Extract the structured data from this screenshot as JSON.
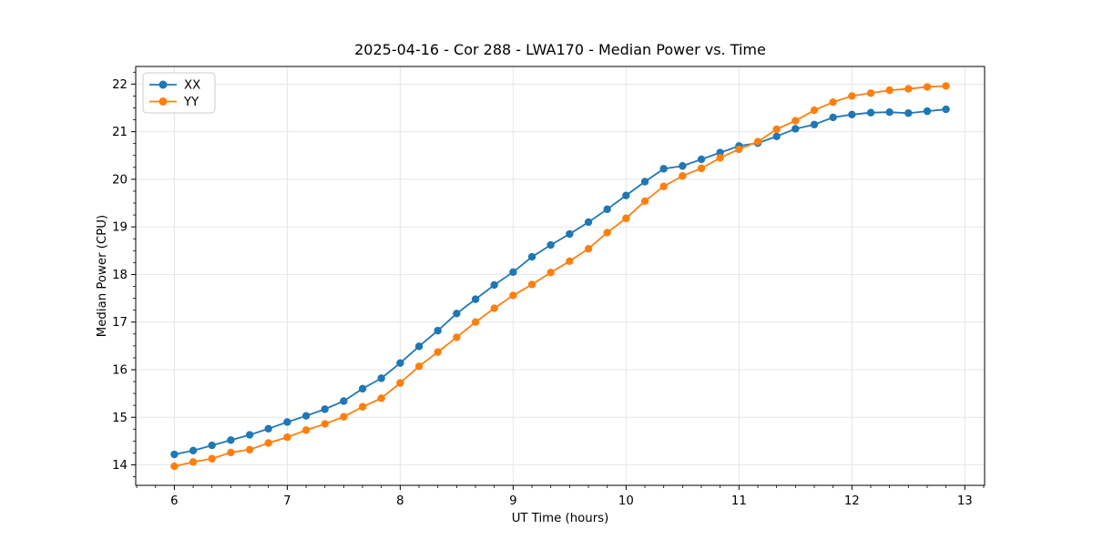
{
  "chart_data": {
    "type": "line",
    "title": "2025-04-16 - Cor 288 - LWA170 - Median Power vs. Time",
    "xlabel": "UT Time (hours)",
    "ylabel": "Median Power (CPU)",
    "xlim": [
      5.658,
      13.175
    ],
    "ylim": [
      13.57,
      22.37
    ],
    "xticks": [
      6,
      7,
      8,
      9,
      10,
      11,
      12,
      13
    ],
    "yticks": [
      14,
      15,
      16,
      17,
      18,
      19,
      20,
      21,
      22
    ],
    "x_minor_step": 0.1666667,
    "y_minor_step": 0.25,
    "grid": true,
    "legend_position": "upper-left",
    "x": [
      6.0,
      6.167,
      6.333,
      6.5,
      6.667,
      6.833,
      7.0,
      7.167,
      7.333,
      7.5,
      7.667,
      7.833,
      8.0,
      8.167,
      8.333,
      8.5,
      8.667,
      8.833,
      9.0,
      9.167,
      9.333,
      9.5,
      9.667,
      9.833,
      10.0,
      10.167,
      10.333,
      10.5,
      10.667,
      10.833,
      11.0,
      11.167,
      11.333,
      11.5,
      11.667,
      11.833,
      12.0,
      12.167,
      12.333,
      12.5,
      12.667,
      12.833
    ],
    "series": [
      {
        "name": "XX",
        "color": "#1f77b4",
        "values": [
          14.22,
          14.3,
          14.41,
          14.52,
          14.63,
          14.76,
          14.9,
          15.03,
          15.17,
          15.34,
          15.6,
          15.82,
          16.14,
          16.49,
          16.82,
          17.18,
          17.48,
          17.78,
          18.05,
          18.37,
          18.62,
          18.85,
          19.1,
          19.37,
          19.66,
          19.95,
          20.22,
          20.28,
          20.42,
          20.56,
          20.7,
          20.76,
          20.9,
          21.06,
          21.15,
          21.3,
          21.36,
          21.4,
          21.41,
          21.39,
          21.43,
          21.47
        ]
      },
      {
        "name": "YY",
        "color": "#ff7f0e",
        "values": [
          13.97,
          14.06,
          14.13,
          14.26,
          14.32,
          14.46,
          14.58,
          14.73,
          14.86,
          15.01,
          15.22,
          15.4,
          15.72,
          16.07,
          16.37,
          16.68,
          17.0,
          17.29,
          17.56,
          17.79,
          18.04,
          18.28,
          18.54,
          18.88,
          19.18,
          19.54,
          19.85,
          20.07,
          20.23,
          20.45,
          20.63,
          20.79,
          21.05,
          21.23,
          21.45,
          21.62,
          21.75,
          21.81,
          21.87,
          21.9,
          21.94,
          21.96
        ]
      }
    ]
  },
  "colors": {
    "background": "#ffffff",
    "grid": "#e6e6e6",
    "spine": "#000000",
    "legend_border": "#cccccc",
    "legend_background": "#ffffff"
  }
}
